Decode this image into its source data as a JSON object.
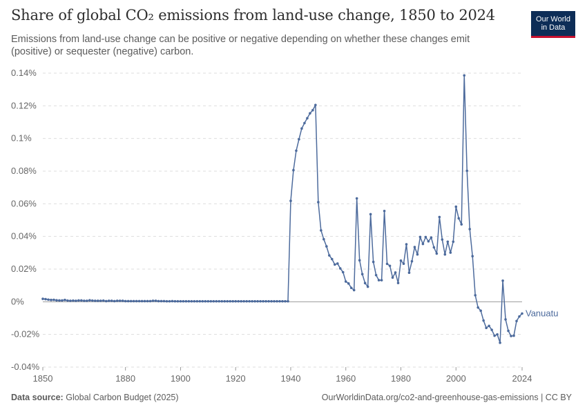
{
  "header": {
    "title": "Share of global CO₂ emissions from land-use change, 1850 to 2024",
    "subtitle": "Emissions from land-use change can be positive or negative depending on whether these changes emit (positive) or sequester (negative) carbon."
  },
  "logo": {
    "line1": "Our World",
    "line2": "in Data"
  },
  "footer": {
    "source_label": "Data source:",
    "source_value": "Global Carbon Budget (2025)",
    "url_license": "OurWorldinData.org/co2-and-greenhouse-gas-emissions | CC BY"
  },
  "colors": {
    "series": "#4c6a9c",
    "grid": "#dddddd",
    "zero_line": "#9a9a9a",
    "axis": "#999999"
  },
  "chart_data": {
    "type": "line",
    "title": "Share of global CO₂ emissions from land-use change, 1850 to 2024",
    "xlabel": "",
    "ylabel": "",
    "xlim": [
      1850,
      2024
    ],
    "ylim": [
      -0.04,
      0.14
    ],
    "y_ticks": [
      -0.04,
      -0.02,
      0,
      0.02,
      0.04,
      0.06,
      0.08,
      0.1,
      0.12,
      0.14
    ],
    "y_tick_labels": [
      "-0.04%",
      "-0.02%",
      "0%",
      "0.02%",
      "0.04%",
      "0.06%",
      "0.08%",
      "0.1%",
      "0.12%",
      "0.14%"
    ],
    "x_ticks": [
      1850,
      1880,
      1900,
      1920,
      1940,
      1960,
      1980,
      2000,
      2024
    ],
    "x_tick_labels": [
      "1850",
      "1880",
      "1900",
      "1920",
      "1940",
      "1960",
      "1980",
      "2000",
      "2024"
    ],
    "grid": true,
    "unit": "%",
    "series": [
      {
        "name": "Vanuatu",
        "start_year": 1850,
        "values": [
          0.0018,
          0.0016,
          0.0013,
          0.0011,
          0.0012,
          0.0009,
          0.0008,
          0.0008,
          0.0011,
          0.0007,
          0.0006,
          0.0007,
          0.0006,
          0.0008,
          0.0008,
          0.0006,
          0.0006,
          0.0009,
          0.0007,
          0.0006,
          0.0006,
          0.0006,
          0.0007,
          0.0004,
          0.0006,
          0.0006,
          0.0004,
          0.0006,
          0.0006,
          0.0006,
          0.0004,
          0.0004,
          0.0004,
          0.0004,
          0.0004,
          0.0004,
          0.0004,
          0.0004,
          0.0004,
          0.0004,
          0.0006,
          0.0006,
          0.0004,
          0.0004,
          0.0004,
          0.0003,
          0.0003,
          0.0004,
          0.0003,
          0.0003,
          0.0003,
          0.0003,
          0.0003,
          0.0003,
          0.0003,
          0.0003,
          0.0003,
          0.0003,
          0.0003,
          0.0003,
          0.0003,
          0.0003,
          0.0003,
          0.0003,
          0.0003,
          0.0003,
          0.0003,
          0.0003,
          0.0003,
          0.0003,
          0.0003,
          0.0003,
          0.0003,
          0.0003,
          0.0003,
          0.0003,
          0.0003,
          0.0003,
          0.0003,
          0.0003,
          0.0003,
          0.0003,
          0.0003,
          0.0003,
          0.0003,
          0.0003,
          0.0003,
          0.0003,
          0.0003,
          0.0003,
          0.0618,
          0.0806,
          0.0925,
          0.0995,
          0.1061,
          0.1094,
          0.1124,
          0.1154,
          0.1173,
          0.1205,
          0.061,
          0.0437,
          0.0383,
          0.0339,
          0.0284,
          0.0261,
          0.0228,
          0.0234,
          0.0204,
          0.0181,
          0.0124,
          0.0112,
          0.0085,
          0.0071,
          0.0633,
          0.0254,
          0.0169,
          0.0114,
          0.0092,
          0.0536,
          0.0244,
          0.0163,
          0.0132,
          0.0132,
          0.0556,
          0.0232,
          0.022,
          0.0148,
          0.0179,
          0.0115,
          0.0252,
          0.0233,
          0.0352,
          0.0178,
          0.0248,
          0.0335,
          0.029,
          0.0397,
          0.0354,
          0.0396,
          0.037,
          0.0393,
          0.0333,
          0.0295,
          0.0519,
          0.0381,
          0.029,
          0.0368,
          0.0301,
          0.0368,
          0.0582,
          0.0511,
          0.0474,
          0.1386,
          0.0802,
          0.0445,
          0.0279,
          0.004,
          -0.0035,
          -0.0055,
          -0.0115,
          -0.016,
          -0.0148,
          -0.0172,
          -0.0208,
          -0.02,
          -0.0251,
          0.0129,
          -0.0108,
          -0.0178,
          -0.021,
          -0.0208,
          -0.0118,
          -0.009,
          -0.0072
        ]
      }
    ]
  }
}
